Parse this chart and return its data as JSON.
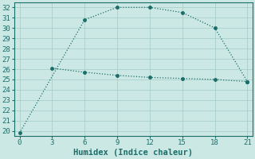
{
  "xlabel": "Humidex (Indice chaleur)",
  "bg_color": "#cce8e4",
  "grid_color": "#aad0cc",
  "line_color": "#1a6e6a",
  "xlim": [
    -0.5,
    21.5
  ],
  "ylim": [
    19.5,
    32.5
  ],
  "xticks": [
    0,
    3,
    6,
    9,
    12,
    15,
    18,
    21
  ],
  "yticks": [
    20,
    21,
    22,
    23,
    24,
    25,
    26,
    27,
    28,
    29,
    30,
    31,
    32
  ],
  "line1_x": [
    0,
    6,
    9,
    12,
    15,
    18,
    21
  ],
  "line1_y": [
    19.8,
    30.8,
    32.0,
    32.0,
    31.5,
    30.0,
    24.8
  ],
  "line2_x": [
    3,
    6,
    9,
    12,
    15,
    18,
    21
  ],
  "line2_y": [
    26.1,
    25.7,
    25.4,
    25.2,
    25.1,
    25.0,
    24.8
  ],
  "markersize": 2.5,
  "linewidth": 0.9,
  "xlabel_fontsize": 7.5,
  "tick_fontsize": 6.5
}
